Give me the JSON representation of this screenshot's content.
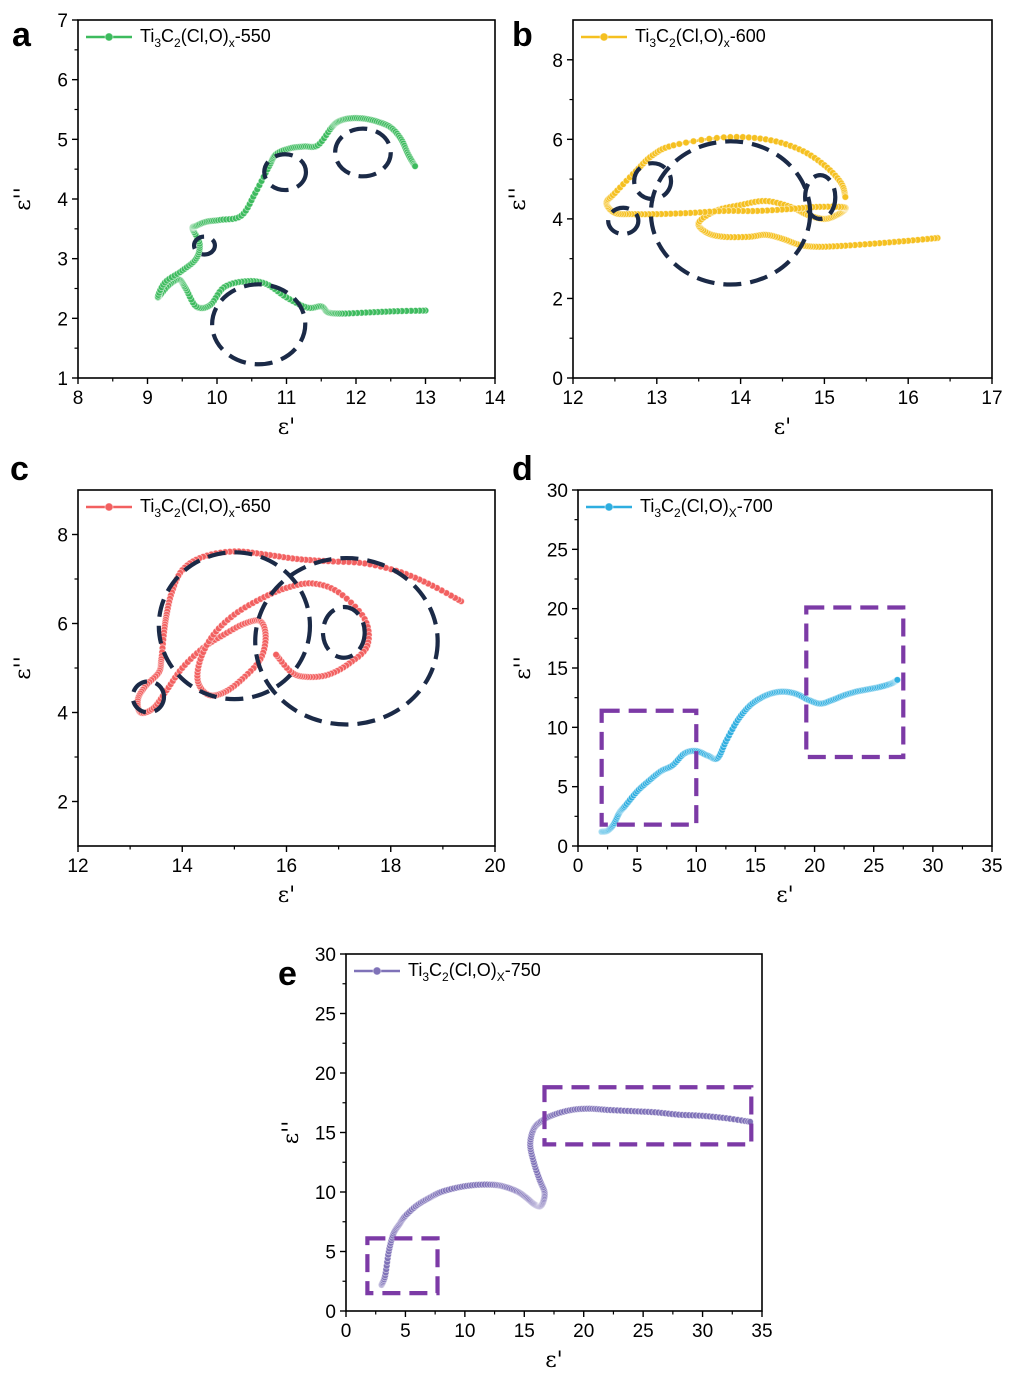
{
  "chart_data": [
    {
      "panel": "a",
      "type": "scatter",
      "color": "#3dbb5e",
      "legend": {
        "prefix": "Ti",
        "s1": "3",
        "mid": "C",
        "s2": "2",
        "mid2": "(Cl,O)",
        "s3": "x",
        "suffix": "-550"
      },
      "xlabel": "ε'",
      "ylabel": "ε''",
      "xlim": [
        8,
        14
      ],
      "ylim": [
        1,
        7
      ],
      "xticks": [
        8,
        9,
        10,
        11,
        12,
        13,
        14
      ],
      "yticks": [
        1,
        2,
        3,
        4,
        5,
        6,
        7
      ],
      "x": [
        13.0,
        12.6,
        12.2,
        11.8,
        11.6,
        11.5,
        11.3,
        11.0,
        10.7,
        10.4,
        10.1,
        9.9,
        9.7,
        9.55,
        9.45,
        9.3,
        9.15,
        9.25,
        9.5,
        9.7,
        9.75,
        9.65,
        9.7,
        9.85,
        10.05,
        10.35,
        10.55,
        10.75,
        10.85,
        11.05,
        11.25,
        11.45,
        11.65,
        11.75,
        11.9,
        12.1,
        12.3,
        12.5,
        12.65,
        12.75,
        12.85
      ],
      "y": [
        2.13,
        2.12,
        2.1,
        2.08,
        2.1,
        2.2,
        2.18,
        2.35,
        2.58,
        2.62,
        2.52,
        2.22,
        2.2,
        2.5,
        2.65,
        2.55,
        2.35,
        2.6,
        2.8,
        3.0,
        3.25,
        3.5,
        3.55,
        3.62,
        3.65,
        3.72,
        4.1,
        4.55,
        4.75,
        4.85,
        4.88,
        4.9,
        5.2,
        5.3,
        5.35,
        5.35,
        5.3,
        5.2,
        5.0,
        4.75,
        4.55
      ],
      "circles": [
        [
          10.6,
          1.9,
          0.67,
          0.67
        ],
        [
          12.1,
          4.78,
          0.4,
          0.4
        ],
        [
          10.98,
          4.45,
          0.3,
          0.3
        ],
        [
          9.82,
          3.22,
          0.15,
          0.15
        ]
      ]
    },
    {
      "panel": "b",
      "type": "scatter",
      "color": "#f5c020",
      "legend": {
        "prefix": "Ti",
        "s1": "3",
        "mid": "C",
        "s2": "2",
        "mid2": "(Cl,O)",
        "s3": "x",
        "suffix": "-600"
      },
      "xlabel": "ε'",
      "ylabel": "ε''",
      "xlim": [
        12,
        17
      ],
      "ylim": [
        0,
        9
      ],
      "xticks": [
        12,
        13,
        14,
        15,
        16,
        17
      ],
      "yticks": [
        0,
        2,
        4,
        6,
        8
      ],
      "x": [
        16.35,
        16.0,
        15.6,
        15.2,
        14.9,
        14.7,
        14.5,
        14.3,
        14.1,
        13.8,
        13.6,
        13.5,
        13.7,
        14.0,
        14.3,
        14.6,
        14.8,
        15.0,
        15.15,
        15.25,
        15.2,
        14.9,
        14.6,
        14.2,
        13.8,
        13.4,
        13.0,
        12.7,
        12.5,
        12.4,
        12.5,
        12.75,
        12.95,
        13.2,
        13.8,
        14.3,
        14.7,
        15.0,
        15.2,
        15.25
      ],
      "y": [
        3.52,
        3.45,
        3.38,
        3.32,
        3.3,
        3.35,
        3.5,
        3.6,
        3.55,
        3.55,
        3.65,
        3.9,
        4.2,
        4.35,
        4.45,
        4.3,
        4.1,
        4.0,
        4.1,
        4.25,
        4.3,
        4.3,
        4.25,
        4.2,
        4.2,
        4.15,
        4.12,
        4.12,
        4.15,
        4.4,
        4.65,
        5.2,
        5.6,
        5.85,
        6.05,
        6.0,
        5.75,
        5.35,
        4.9,
        4.55
      ],
      "circles": [
        [
          13.88,
          4.15,
          0.95,
          1.8
        ],
        [
          12.95,
          4.95,
          0.22,
          0.45
        ],
        [
          12.6,
          3.95,
          0.18,
          0.33
        ],
        [
          14.95,
          4.55,
          0.18,
          0.55
        ]
      ]
    },
    {
      "panel": "c",
      "type": "scatter",
      "color": "#f26060",
      "legend": {
        "prefix": "Ti",
        "s1": "3",
        "mid": "C",
        "s2": "2",
        "mid2": "(Cl,O)",
        "s3": "x",
        "suffix": "-650"
      },
      "xlabel": "ε'",
      "ylabel": "ε''",
      "xlim": [
        12,
        20
      ],
      "ylim": [
        1,
        9
      ],
      "xticks": [
        12,
        14,
        16,
        18,
        20
      ],
      "yticks": [
        2,
        4,
        6,
        8
      ],
      "x": [
        19.35,
        18.8,
        18.2,
        17.5,
        16.8,
        16.2,
        15.6,
        15.0,
        14.4,
        14.0,
        13.8,
        13.7,
        13.65,
        13.6,
        13.55,
        13.3,
        13.15,
        13.2,
        13.45,
        13.7,
        14.0,
        14.4,
        14.8,
        15.2,
        15.5,
        15.6,
        15.5,
        15.15,
        14.8,
        14.5,
        14.3,
        14.35,
        14.6,
        15.0,
        15.5,
        16.0,
        16.5,
        17.0,
        17.5,
        17.55,
        17.2,
        16.8,
        16.4,
        16.1,
        15.8
      ],
      "y": [
        6.5,
        6.85,
        7.15,
        7.35,
        7.4,
        7.45,
        7.55,
        7.62,
        7.5,
        7.2,
        6.7,
        6.2,
        5.8,
        5.2,
        4.9,
        4.6,
        4.3,
        4.0,
        4.1,
        4.5,
        5.0,
        5.45,
        5.75,
        6.0,
        6.05,
        5.7,
        5.2,
        4.75,
        4.45,
        4.4,
        4.7,
        5.2,
        5.75,
        6.2,
        6.55,
        6.8,
        6.9,
        6.7,
        6.1,
        5.5,
        5.1,
        4.85,
        4.8,
        4.9,
        5.3
      ],
      "circles": [
        [
          15.0,
          5.95,
          1.45,
          1.65
        ],
        [
          17.15,
          5.6,
          1.75,
          1.87
        ],
        [
          17.1,
          5.8,
          0.4,
          0.57
        ],
        [
          13.35,
          4.35,
          0.3,
          0.35
        ]
      ]
    },
    {
      "panel": "d",
      "type": "scatter",
      "color": "#2eaee0",
      "legend": {
        "prefix": "Ti",
        "s1": "3",
        "mid": "C",
        "s2": "2",
        "mid2": "(Cl,O)",
        "s3": "X",
        "suffix": "-700"
      },
      "xlabel": "ε'",
      "ylabel": "ε''",
      "xlim": [
        0,
        35
      ],
      "ylim": [
        0,
        30
      ],
      "xticks": [
        0,
        5,
        10,
        15,
        20,
        25,
        30,
        35
      ],
      "yticks": [
        0,
        5,
        10,
        15,
        20,
        25,
        30
      ],
      "x": [
        2.0,
        2.5,
        3.0,
        3.5,
        4.0,
        5.0,
        6.0,
        7.0,
        8.0,
        9.0,
        10.0,
        11.0,
        11.8,
        12.5,
        13.5,
        14.5,
        15.5,
        16.5,
        17.5,
        18.5,
        19.5,
        20.5,
        21.5,
        22.5,
        23.5,
        24.5,
        25.5,
        26.5,
        27.0
      ],
      "y": [
        1.2,
        1.3,
        1.8,
        2.8,
        3.4,
        4.6,
        5.5,
        6.3,
        6.8,
        7.8,
        8.0,
        7.6,
        7.4,
        8.8,
        10.6,
        11.8,
        12.5,
        12.9,
        13.0,
        12.8,
        12.3,
        12.0,
        12.3,
        12.7,
        13.0,
        13.2,
        13.4,
        13.7,
        14.0
      ],
      "boxes": [
        [
          2.0,
          10.0,
          1.8,
          11.4
        ],
        [
          19.3,
          27.5,
          7.5,
          20.1
        ]
      ]
    },
    {
      "panel": "e",
      "type": "scatter",
      "color": "#7f72b8",
      "legend": {
        "prefix": "Ti",
        "s1": "3",
        "mid": "C",
        "s2": "2",
        "mid2": "(Cl,O)",
        "s3": "X",
        "suffix": "-750"
      },
      "xlabel": "ε'",
      "ylabel": "ε''",
      "xlim": [
        0,
        35
      ],
      "ylim": [
        0,
        30
      ],
      "xticks": [
        0,
        5,
        10,
        15,
        20,
        25,
        30,
        35
      ],
      "yticks": [
        0,
        5,
        10,
        15,
        20,
        25,
        30
      ],
      "x": [
        3.0,
        3.3,
        3.6,
        4.0,
        4.5,
        5.0,
        6.0,
        7.0,
        8.0,
        9.5,
        11.0,
        12.5,
        13.5,
        14.5,
        15.2,
        15.8,
        16.3,
        16.6,
        16.7,
        16.3,
        15.8,
        15.5,
        15.8,
        16.5,
        17.5,
        19.0,
        20.5,
        22.0,
        24.0,
        26.0,
        28.0,
        30.0,
        32.0,
        34.0
      ],
      "y": [
        2.2,
        3.0,
        5.0,
        6.5,
        7.3,
        8.0,
        8.9,
        9.5,
        10.0,
        10.4,
        10.6,
        10.6,
        10.4,
        10.0,
        9.5,
        9.0,
        8.8,
        9.2,
        10.0,
        11.0,
        12.5,
        14.0,
        15.3,
        16.0,
        16.5,
        16.9,
        17.0,
        16.9,
        16.8,
        16.7,
        16.5,
        16.4,
        16.2,
        15.9
      ],
      "boxes": [
        [
          1.8,
          7.7,
          1.5,
          6.1
        ],
        [
          16.7,
          34.1,
          14.0,
          18.8
        ]
      ]
    }
  ]
}
